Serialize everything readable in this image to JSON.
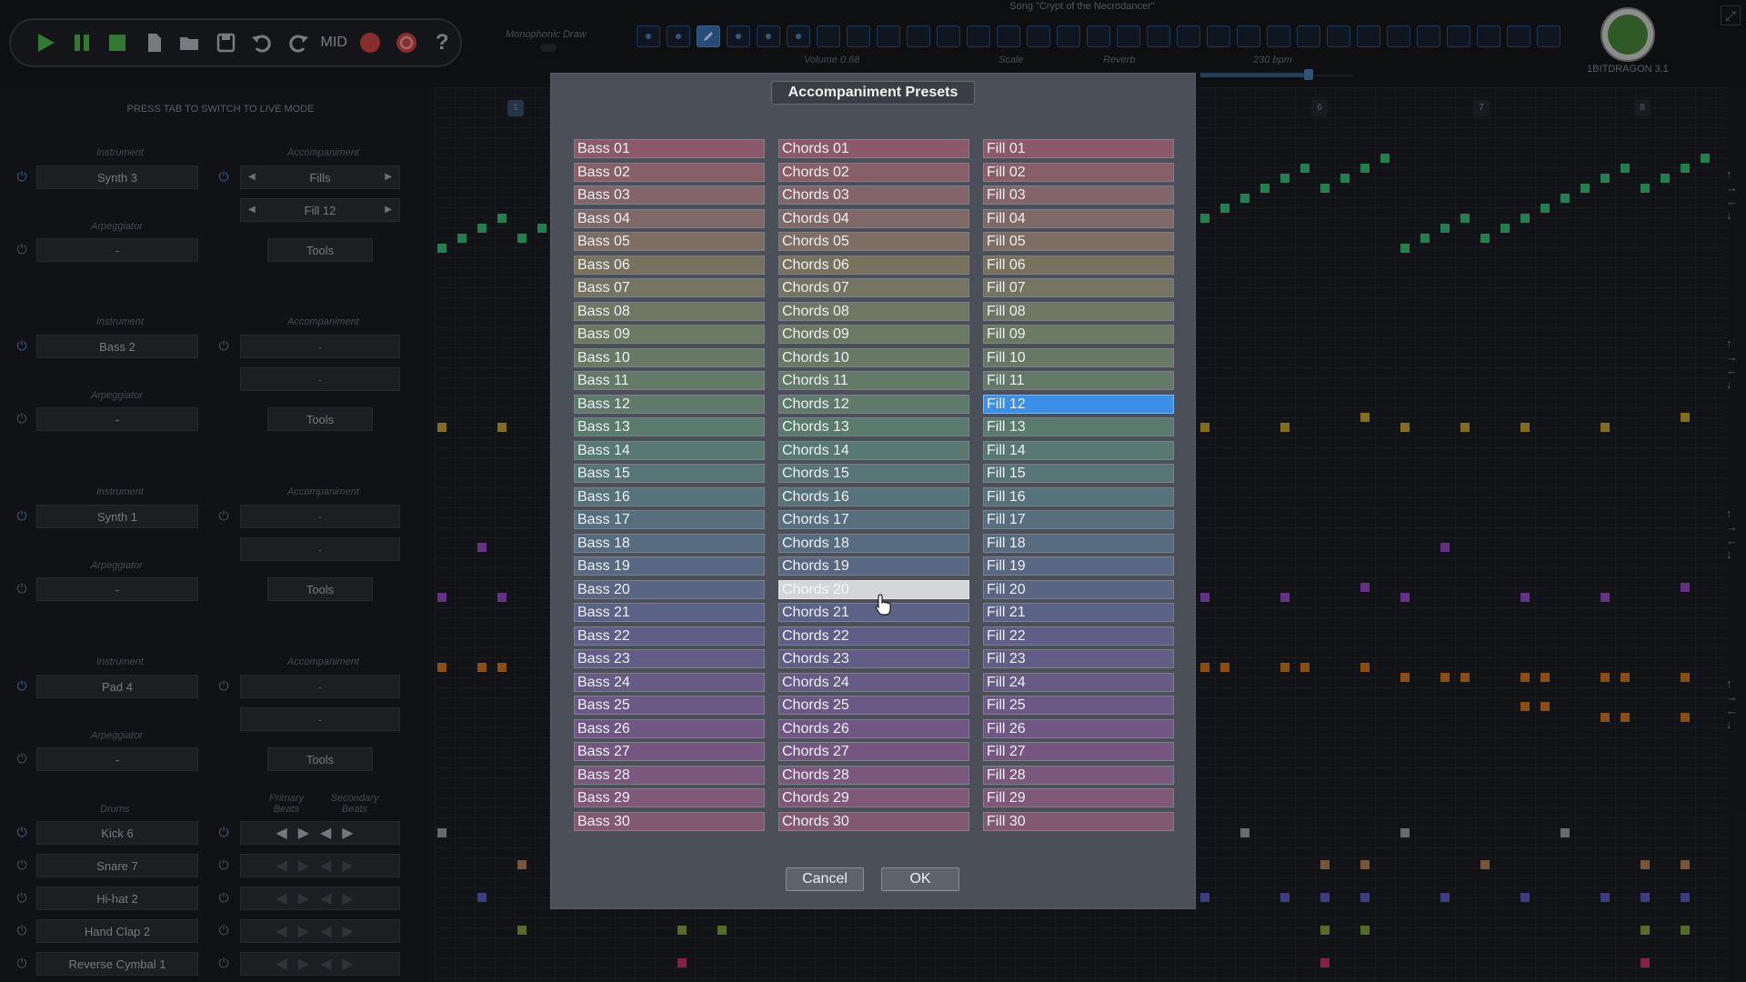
{
  "toolbar": {
    "mid_label": "MID",
    "icons": [
      "play-icon",
      "pause-icon",
      "stop-icon",
      "new-file-icon",
      "open-folder-icon",
      "save-icon",
      "undo-icon",
      "redo-icon",
      "record-icon",
      "loop-icon",
      "help-icon"
    ]
  },
  "header": {
    "song_title": "Song \"Crypt of the Necrodancer\"",
    "monophonic_draw": "Monophonic Draw",
    "volume": "Volume 0.68",
    "scale": "Scale",
    "reverb": "Reverb",
    "bpm": "230 bpm",
    "version": "1BITDRAGON 3.1"
  },
  "left_panel": {
    "live_mode_hint": "PRESS TAB TO SWITCH TO LIVE MODE",
    "instrument_label": "Instrument",
    "accompaniment_label": "Accompaniment",
    "arpeggiator_label": "Arpeggiator",
    "tools_label": "Tools",
    "drums_label": "Drums",
    "primary_beats": "Primary Beats",
    "secondary_beats": "Secondary Beats",
    "tracks": [
      {
        "instrument": "Synth 3",
        "accompaniment": "Fills",
        "accompaniment2": "Fill 12",
        "arpeggiator": "-"
      },
      {
        "instrument": "Bass 2",
        "accompaniment": "-",
        "accompaniment2": "-",
        "arpeggiator": "-"
      },
      {
        "instrument": "Synth 1",
        "accompaniment": "-",
        "accompaniment2": "-",
        "arpeggiator": "-"
      },
      {
        "instrument": "Pad 4",
        "accompaniment": "-",
        "accompaniment2": "-",
        "arpeggiator": "-"
      }
    ],
    "drums": [
      "Kick 6",
      "Snare 7",
      "Hi-hat 2",
      "Hand Clap 2",
      "Reverse Cymbal 1"
    ]
  },
  "measures": [
    "1",
    "6",
    "7",
    "8"
  ],
  "dialog": {
    "title": "Accompaniment Presets",
    "bass": [
      "Bass 01",
      "Bass 02",
      "Bass 03",
      "Bass 04",
      "Bass 05",
      "Bass 06",
      "Bass 07",
      "Bass 08",
      "Bass 09",
      "Bass 10",
      "Bass 11",
      "Bass 12",
      "Bass 13",
      "Bass 14",
      "Bass 15",
      "Bass 16",
      "Bass 17",
      "Bass 18",
      "Bass 19",
      "Bass 20",
      "Bass 21",
      "Bass 22",
      "Bass 23",
      "Bass 24",
      "Bass 25",
      "Bass 26",
      "Bass 27",
      "Bass 28",
      "Bass 29",
      "Bass 30"
    ],
    "chords": [
      "Chords 01",
      "Chords 02",
      "Chords 03",
      "Chords 04",
      "Chords 05",
      "Chords 06",
      "Chords 07",
      "Chords 08",
      "Chords 09",
      "Chords 10",
      "Chords 11",
      "Chords 12",
      "Chords 13",
      "Chords 14",
      "Chords 15",
      "Chords 16",
      "Chords 17",
      "Chords 18",
      "Chords 19",
      "Chords 20",
      "Chords 21",
      "Chords 22",
      "Chords 23",
      "Chords 24",
      "Chords 25",
      "Chords 26",
      "Chords 27",
      "Chords 28",
      "Chords 29",
      "Chords 30"
    ],
    "fills": [
      "Fill 01",
      "Fill 02",
      "Fill 03",
      "Fill 04",
      "Fill 05",
      "Fill 06",
      "Fill 07",
      "Fill 08",
      "Fill 09",
      "Fill 10",
      "Fill 11",
      "Fill 12",
      "Fill 13",
      "Fill 14",
      "Fill 15",
      "Fill 16",
      "Fill 17",
      "Fill 18",
      "Fill 19",
      "Fill 20",
      "Fill 21",
      "Fill 22",
      "Fill 23",
      "Fill 24",
      "Fill 25",
      "Fill 26",
      "Fill 27",
      "Fill 28",
      "Fill 29",
      "Fill 30"
    ],
    "selected": "Fill 12",
    "hovered": "Chords 20",
    "cancel": "Cancel",
    "ok": "OK"
  },
  "colors": {
    "selected": "#3c8fe6",
    "hover": "#d3d5d9",
    "row_gradient": [
      "#8a5a6a",
      "#826668",
      "#7a7060",
      "#6e7862",
      "#647a66",
      "#5a7a6e",
      "#567478",
      "#586c80",
      "#5a6484",
      "#625c86",
      "#6c5884",
      "#785680",
      "#825a70"
    ]
  }
}
